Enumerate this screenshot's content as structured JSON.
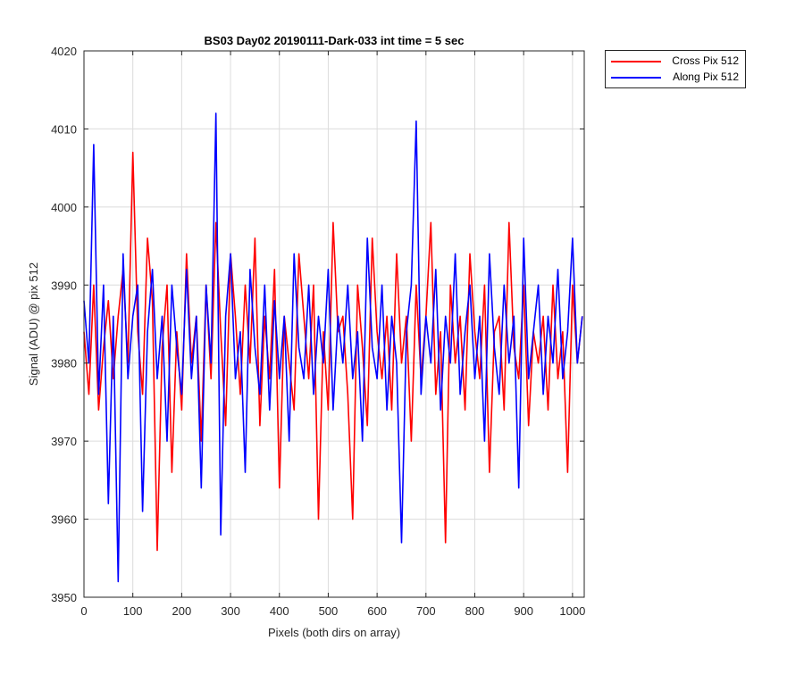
{
  "chart_data": {
    "type": "line",
    "title": "BS03 Day02 20190111-Dark-033 int time = 5 sec",
    "xlabel": "Pixels (both dirs on array)",
    "ylabel": "Signal (ADU) @ pix 512",
    "xlim": [
      0,
      1024
    ],
    "ylim": [
      3950,
      4020
    ],
    "xticks": [
      0,
      100,
      200,
      300,
      400,
      500,
      600,
      700,
      800,
      900,
      1000
    ],
    "yticks": [
      3950,
      3960,
      3970,
      3980,
      3990,
      4000,
      4010,
      4020
    ],
    "xtick_labels": [
      "0",
      "100",
      "200",
      "300",
      "400",
      "500",
      "600",
      "700",
      "800",
      "900",
      "1000"
    ],
    "ytick_labels": [
      "3950",
      "3960",
      "3970",
      "3980",
      "3990",
      "4000",
      "4010",
      "4020"
    ],
    "grid": true,
    "legend_position": "outside-top-right",
    "series": [
      {
        "name": "Cross Pix 512",
        "color": "#ff0000",
        "x": [
          0,
          10,
          20,
          30,
          40,
          50,
          60,
          70,
          80,
          90,
          100,
          110,
          120,
          130,
          140,
          150,
          160,
          170,
          180,
          190,
          200,
          210,
          220,
          230,
          240,
          250,
          260,
          270,
          280,
          290,
          300,
          310,
          320,
          330,
          340,
          350,
          360,
          370,
          380,
          390,
          400,
          410,
          420,
          430,
          440,
          450,
          460,
          470,
          480,
          490,
          500,
          510,
          520,
          530,
          540,
          550,
          560,
          570,
          580,
          590,
          600,
          610,
          620,
          630,
          640,
          650,
          660,
          670,
          680,
          690,
          700,
          710,
          720,
          730,
          740,
          750,
          760,
          770,
          780,
          790,
          800,
          810,
          820,
          830,
          840,
          850,
          860,
          870,
          880,
          890,
          900,
          910,
          920,
          930,
          940,
          950,
          960,
          970,
          980,
          990,
          1000,
          1010,
          1020
        ],
        "values": [
          3984,
          3976,
          3990,
          3974,
          3982,
          3988,
          3978,
          3986,
          3992,
          3980,
          4007,
          3984,
          3976,
          3996,
          3988,
          3956,
          3982,
          3990,
          3966,
          3984,
          3974,
          3994,
          3980,
          3986,
          3970,
          3990,
          3978,
          3998,
          3984,
          3972,
          3994,
          3986,
          3976,
          3990,
          3980,
          3996,
          3972,
          3986,
          3978,
          3992,
          3964,
          3986,
          3980,
          3974,
          3994,
          3986,
          3978,
          3990,
          3960,
          3984,
          3974,
          3998,
          3984,
          3986,
          3976,
          3960,
          3990,
          3982,
          3972,
          3996,
          3984,
          3978,
          3986,
          3974,
          3994,
          3980,
          3986,
          3970,
          3990,
          3978,
          3986,
          3998,
          3976,
          3984,
          3957,
          3990,
          3980,
          3986,
          3974,
          3994,
          3984,
          3978,
          3990,
          3966,
          3984,
          3986,
          3974,
          3998,
          3982,
          3978,
          3990,
          3972,
          3984,
          3980,
          3986,
          3974,
          3990,
          3978,
          3984,
          3966,
          3990,
          3980,
          3986
        ]
      },
      {
        "name": "Along Pix 512",
        "color": "#0000ff",
        "x": [
          0,
          10,
          20,
          30,
          40,
          50,
          60,
          70,
          80,
          90,
          100,
          110,
          120,
          130,
          140,
          150,
          160,
          170,
          180,
          190,
          200,
          210,
          220,
          230,
          240,
          250,
          260,
          270,
          280,
          290,
          300,
          310,
          320,
          330,
          340,
          350,
          360,
          370,
          380,
          390,
          400,
          410,
          420,
          430,
          440,
          450,
          460,
          470,
          480,
          490,
          500,
          510,
          520,
          530,
          540,
          550,
          560,
          570,
          580,
          590,
          600,
          610,
          620,
          630,
          640,
          650,
          660,
          670,
          680,
          690,
          700,
          710,
          720,
          730,
          740,
          750,
          760,
          770,
          780,
          790,
          800,
          810,
          820,
          830,
          840,
          850,
          860,
          870,
          880,
          890,
          900,
          910,
          920,
          930,
          940,
          950,
          960,
          970,
          980,
          990,
          1000,
          1010,
          1020
        ],
        "values": [
          3988,
          3980,
          4008,
          3976,
          3990,
          3962,
          3986,
          3952,
          3994,
          3978,
          3986,
          3990,
          3961,
          3984,
          3992,
          3978,
          3986,
          3970,
          3990,
          3982,
          3976,
          3992,
          3978,
          3986,
          3964,
          3990,
          3980,
          4012,
          3958,
          3986,
          3994,
          3978,
          3984,
          3966,
          3992,
          3982,
          3976,
          3990,
          3974,
          3988,
          3978,
          3986,
          3970,
          3994,
          3982,
          3978,
          3990,
          3976,
          3986,
          3980,
          3992,
          3974,
          3986,
          3980,
          3990,
          3978,
          3984,
          3970,
          3996,
          3982,
          3978,
          3990,
          3974,
          3986,
          3980,
          3957,
          3984,
          3990,
          4011,
          3976,
          3986,
          3980,
          3992,
          3974,
          3986,
          3980,
          3994,
          3976,
          3984,
          3990,
          3978,
          3986,
          3970,
          3994,
          3982,
          3976,
          3990,
          3980,
          3986,
          3964,
          3996,
          3978,
          3984,
          3990,
          3976,
          3986,
          3980,
          3992,
          3978,
          3984,
          3996,
          3980,
          3986
        ]
      }
    ]
  }
}
